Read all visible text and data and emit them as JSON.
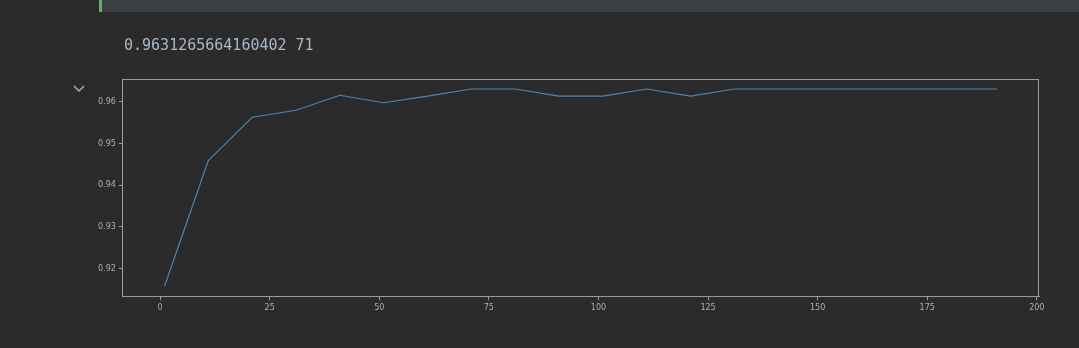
{
  "chart_data": {
    "type": "line",
    "annotations": [
      "0.9631265664160402 71"
    ],
    "x": [
      1,
      11,
      21,
      31,
      41,
      51,
      61,
      71,
      81,
      91,
      101,
      111,
      121,
      131,
      141,
      151,
      161,
      171,
      181,
      191
    ],
    "series": [
      {
        "color": "#4e86ad",
        "values": [
          0.9157,
          0.9459,
          0.9563,
          0.958,
          0.9616,
          0.9598,
          0.9614,
          0.9631,
          0.9631,
          0.9614,
          0.9614,
          0.9631,
          0.9614,
          0.9631,
          0.9631,
          0.9631,
          0.9631,
          0.9631,
          0.9631,
          0.9631
        ]
      }
    ],
    "xlim": [
      -8.5,
      200.5
    ],
    "xticks": [
      0,
      25,
      50,
      75,
      100,
      125,
      150,
      175,
      200
    ],
    "ylim": [
      0.9133,
      0.9655
    ],
    "yticks": [
      0.92,
      0.93,
      0.94,
      0.95,
      0.96
    ],
    "grid": false,
    "legend": false,
    "marker": "none",
    "line_style": "solid"
  }
}
